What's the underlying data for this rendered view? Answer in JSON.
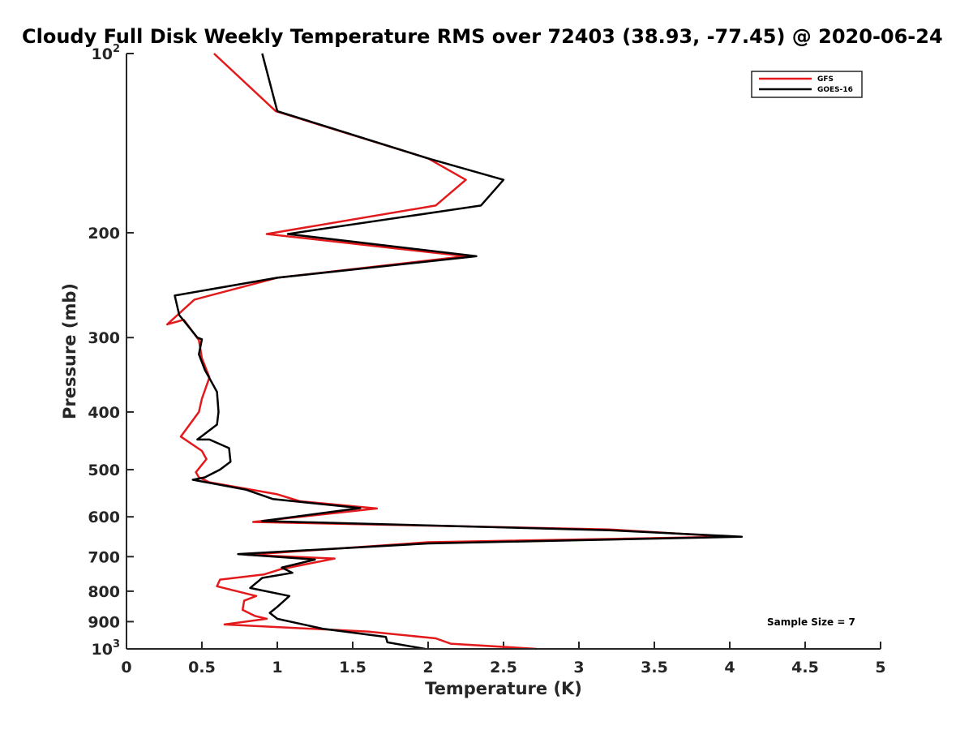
{
  "chart_data": {
    "type": "line",
    "title": "Cloudy Full Disk Weekly Temperature RMS over 72403 (38.93, -77.45) @ 2020-06-24",
    "xlabel": "Temperature (K)",
    "ylabel": "Pressure (mb)",
    "xlim": [
      0,
      5
    ],
    "ylim": [
      1000,
      100
    ],
    "yscale": "log",
    "y_reversed": true,
    "grid": false,
    "legend_position": "top-right",
    "x_ticks": [
      "0",
      "0.5",
      "1",
      "1.5",
      "2",
      "2.5",
      "3",
      "3.5",
      "4",
      "4.5",
      "5"
    ],
    "y_ticks": [
      {
        "value": 100,
        "base": "10",
        "exp": "2"
      },
      {
        "value": 200,
        "label": "200"
      },
      {
        "value": 300,
        "label": "300"
      },
      {
        "value": 400,
        "label": "400"
      },
      {
        "value": 500,
        "label": "500"
      },
      {
        "value": 600,
        "label": "600"
      },
      {
        "value": 700,
        "label": "700"
      },
      {
        "value": 800,
        "label": "800"
      },
      {
        "value": 900,
        "label": "900"
      },
      {
        "value": 1000,
        "base": "10",
        "exp": "3"
      }
    ],
    "annotation": "Sample Size = 7",
    "series": [
      {
        "name": "GFS",
        "color": "#e31a1c",
        "points": [
          [
            0.58,
            100
          ],
          [
            0.99,
            125
          ],
          [
            2.0,
            150
          ],
          [
            2.25,
            163
          ],
          [
            2.05,
            180
          ],
          [
            0.93,
            201
          ],
          [
            2.25,
            219
          ],
          [
            1.0,
            238
          ],
          [
            0.45,
            259
          ],
          [
            0.27,
            285
          ],
          [
            0.38,
            280
          ],
          [
            0.48,
            303
          ],
          [
            0.5,
            325
          ],
          [
            0.55,
            350
          ],
          [
            0.5,
            380
          ],
          [
            0.48,
            400
          ],
          [
            0.36,
            440
          ],
          [
            0.5,
            465
          ],
          [
            0.53,
            480
          ],
          [
            0.46,
            505
          ],
          [
            0.48,
            515
          ],
          [
            0.55,
            525
          ],
          [
            1.0,
            550
          ],
          [
            1.15,
            565
          ],
          [
            1.66,
            581
          ],
          [
            0.84,
            612
          ],
          [
            3.2,
            630
          ],
          [
            4.0,
            648
          ],
          [
            2.0,
            662
          ],
          [
            0.8,
            695
          ],
          [
            1.38,
            705
          ],
          [
            1.02,
            735
          ],
          [
            0.91,
            750
          ],
          [
            0.62,
            765
          ],
          [
            0.6,
            785
          ],
          [
            0.86,
            815
          ],
          [
            0.78,
            830
          ],
          [
            0.77,
            860
          ],
          [
            0.85,
            880
          ],
          [
            0.93,
            890
          ],
          [
            0.65,
            910
          ],
          [
            1.6,
            935
          ],
          [
            2.05,
            960
          ],
          [
            2.15,
            980
          ],
          [
            2.72,
            1000
          ]
        ]
      },
      {
        "name": "GOES-16",
        "color": "#000000",
        "points": [
          [
            0.9,
            100
          ],
          [
            1.0,
            125
          ],
          [
            2.0,
            150
          ],
          [
            2.5,
            163
          ],
          [
            2.35,
            180
          ],
          [
            1.07,
            201
          ],
          [
            2.32,
            219
          ],
          [
            1.0,
            238
          ],
          [
            0.32,
            255
          ],
          [
            0.35,
            275
          ],
          [
            0.47,
            300
          ],
          [
            0.5,
            302
          ],
          [
            0.48,
            320
          ],
          [
            0.52,
            340
          ],
          [
            0.6,
            370
          ],
          [
            0.61,
            400
          ],
          [
            0.6,
            420
          ],
          [
            0.47,
            445
          ],
          [
            0.55,
            445
          ],
          [
            0.68,
            460
          ],
          [
            0.69,
            485
          ],
          [
            0.62,
            500
          ],
          [
            0.52,
            515
          ],
          [
            0.44,
            520
          ],
          [
            0.79,
            540
          ],
          [
            0.97,
            560
          ],
          [
            1.55,
            580
          ],
          [
            0.9,
            610
          ],
          [
            3.2,
            632
          ],
          [
            4.08,
            648
          ],
          [
            2.0,
            665
          ],
          [
            0.74,
            693
          ],
          [
            1.25,
            708
          ],
          [
            1.03,
            730
          ],
          [
            1.1,
            745
          ],
          [
            0.9,
            760
          ],
          [
            0.82,
            790
          ],
          [
            1.08,
            815
          ],
          [
            1.0,
            850
          ],
          [
            0.95,
            870
          ],
          [
            1.0,
            890
          ],
          [
            1.3,
            925
          ],
          [
            1.72,
            955
          ],
          [
            1.73,
            975
          ],
          [
            1.98,
            1000
          ]
        ]
      }
    ]
  }
}
